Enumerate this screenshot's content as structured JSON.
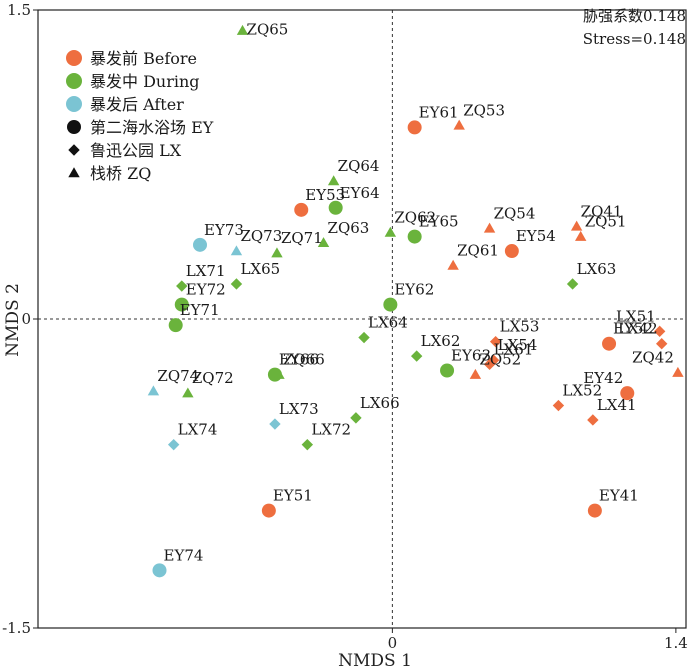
{
  "chart_data": {
    "type": "scatter",
    "title": "",
    "xlabel": "NMDS 1",
    "ylabel": "NMDS 2",
    "xlim": [
      -1.75,
      1.45
    ],
    "ylim": [
      -1.5,
      1.5
    ],
    "x_ticks": [
      {
        "value": 0,
        "label": "0"
      },
      {
        "value": 1.4,
        "label": "1.4"
      }
    ],
    "y_ticks": [
      {
        "value": 1.5,
        "label": "1.5"
      },
      {
        "value": 0,
        "label": "0"
      },
      {
        "value": -1.5,
        "label": "-1.5"
      }
    ],
    "zero_lines": true,
    "stats": [
      "胁强系数0.148",
      "Stress=0.148"
    ],
    "legend": {
      "position": "top-left",
      "periods": [
        {
          "name": "暴发前 Before",
          "color": "#ee6e3f"
        },
        {
          "name": "暴发中 During",
          "color": "#6ab33c"
        },
        {
          "name": "暴发后 After",
          "color": "#7bc4d3"
        }
      ],
      "sites": [
        {
          "name": "第二海水浴场 EY",
          "shape": "circle"
        },
        {
          "name": "鲁迅公园 LX",
          "shape": "diamond"
        },
        {
          "name": "栈桥 ZQ",
          "shape": "triangle"
        }
      ]
    },
    "series": [
      {
        "name": "暴发前 Before",
        "color": "#ee6e3f",
        "points": [
          {
            "label": "EY61",
            "site": "EY",
            "x": 0.11,
            "y": 0.93
          },
          {
            "label": "ZQ53",
            "site": "ZQ",
            "x": 0.33,
            "y": 0.94
          },
          {
            "label": "EY53",
            "site": "EY",
            "x": -0.45,
            "y": 0.53
          },
          {
            "label": "ZQ54",
            "site": "ZQ",
            "x": 0.48,
            "y": 0.44
          },
          {
            "label": "ZQ41",
            "site": "ZQ",
            "x": 0.91,
            "y": 0.45
          },
          {
            "label": "ZQ51",
            "site": "ZQ",
            "x": 0.93,
            "y": 0.4
          },
          {
            "label": "EY54",
            "site": "EY",
            "x": 0.59,
            "y": 0.33
          },
          {
            "label": "ZQ61",
            "site": "ZQ",
            "x": 0.3,
            "y": 0.26
          },
          {
            "label": "LX51",
            "site": "LX",
            "x": 1.32,
            "y": -0.06
          },
          {
            "label": "EY52",
            "site": "EY",
            "x": 1.07,
            "y": -0.12
          },
          {
            "label": "LX53",
            "site": "LX",
            "x": 0.51,
            "y": -0.11
          },
          {
            "label": "LX42",
            "site": "LX",
            "x": 1.33,
            "y": -0.12
          },
          {
            "label": "LX54",
            "site": "LX",
            "x": 0.5,
            "y": -0.2
          },
          {
            "label": "LX61",
            "site": "LX",
            "x": 0.48,
            "y": -0.22
          },
          {
            "label": "ZQ52",
            "site": "ZQ",
            "x": 0.41,
            "y": -0.27
          },
          {
            "label": "ZQ42",
            "site": "ZQ",
            "x": 1.41,
            "y": -0.26
          },
          {
            "label": "EY42",
            "site": "EY",
            "x": 1.16,
            "y": -0.36
          },
          {
            "label": "LX52",
            "site": "LX",
            "x": 0.82,
            "y": -0.42
          },
          {
            "label": "LX41",
            "site": "LX",
            "x": 0.99,
            "y": -0.49
          },
          {
            "label": "EY51",
            "site": "EY",
            "x": -0.61,
            "y": -0.93
          },
          {
            "label": "EY41",
            "site": "EY",
            "x": 1.0,
            "y": -0.93
          }
        ]
      },
      {
        "name": "暴发中 During",
        "color": "#6ab33c",
        "points": [
          {
            "label": "ZQ65",
            "site": "ZQ",
            "x": -0.74,
            "y": 1.4
          },
          {
            "label": "ZQ64",
            "site": "ZQ",
            "x": -0.29,
            "y": 0.67
          },
          {
            "label": "EY64",
            "site": "EY",
            "x": -0.28,
            "y": 0.54
          },
          {
            "label": "ZQ63",
            "site": "ZQ",
            "x": -0.34,
            "y": 0.37
          },
          {
            "label": "ZQ62",
            "site": "ZQ",
            "x": -0.01,
            "y": 0.42
          },
          {
            "label": "EY65",
            "site": "EY",
            "x": 0.11,
            "y": 0.4
          },
          {
            "label": "ZQ71",
            "site": "ZQ",
            "x": -0.57,
            "y": 0.32
          },
          {
            "label": "LX63",
            "site": "LX",
            "x": 0.89,
            "y": 0.17
          },
          {
            "label": "LX65",
            "site": "LX",
            "x": -0.77,
            "y": 0.17
          },
          {
            "label": "LX71",
            "site": "LX",
            "x": -1.04,
            "y": 0.16
          },
          {
            "label": "EY62",
            "site": "EY",
            "x": -0.01,
            "y": 0.07
          },
          {
            "label": "EY72",
            "site": "EY",
            "x": -1.04,
            "y": 0.07
          },
          {
            "label": "EY71",
            "site": "EY",
            "x": -1.07,
            "y": -0.03
          },
          {
            "label": "LX64",
            "site": "LX",
            "x": -0.14,
            "y": -0.09
          },
          {
            "label": "LX62",
            "site": "LX",
            "x": 0.12,
            "y": -0.18
          },
          {
            "label": "EY66",
            "site": "EY",
            "x": -0.58,
            "y": -0.27
          },
          {
            "label": "ZQ66",
            "site": "ZQ",
            "x": -0.56,
            "y": -0.27
          },
          {
            "label": "EY63",
            "site": "EY",
            "x": 0.27,
            "y": -0.25
          },
          {
            "label": "ZQ72",
            "site": "ZQ",
            "x": -1.01,
            "y": -0.36
          },
          {
            "label": "LX66",
            "site": "LX",
            "x": -0.18,
            "y": -0.48
          },
          {
            "label": "LX72",
            "site": "LX",
            "x": -0.42,
            "y": -0.61
          }
        ]
      },
      {
        "name": "暴发后 After",
        "color": "#7bc4d3",
        "points": [
          {
            "label": "EY73",
            "site": "EY",
            "x": -0.95,
            "y": 0.36
          },
          {
            "label": "ZQ73",
            "site": "ZQ",
            "x": -0.77,
            "y": 0.33
          },
          {
            "label": "ZQ74",
            "site": "ZQ",
            "x": -1.18,
            "y": -0.35
          },
          {
            "label": "LX73",
            "site": "LX",
            "x": -0.58,
            "y": -0.51
          },
          {
            "label": "LX74",
            "site": "LX",
            "x": -1.08,
            "y": -0.61
          },
          {
            "label": "EY74",
            "site": "EY",
            "x": -1.15,
            "y": -1.22
          }
        ]
      }
    ]
  }
}
